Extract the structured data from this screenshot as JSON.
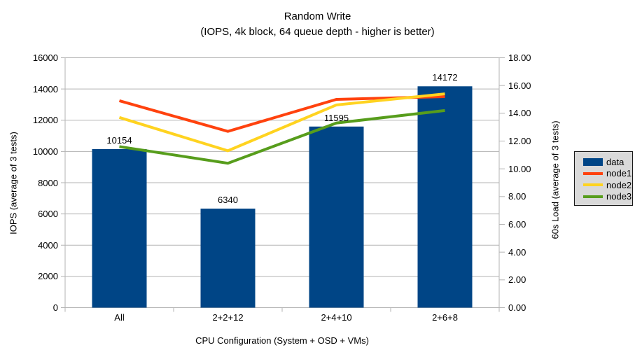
{
  "chart_data": {
    "type": "bar",
    "title": "Random Write",
    "subtitle": "(IOPS, 4k block, 64 queue depth - higher is better)",
    "xlabel": "CPU Configuration (System + OSD + VMs)",
    "categories": [
      "All",
      "2+2+12",
      "2+4+10",
      "2+6+8"
    ],
    "left_axis": {
      "label": "IOPS (average of 3 tests)",
      "min": 0,
      "max": 16000,
      "step": 2000,
      "tick_labels": [
        "0",
        "2000",
        "4000",
        "6000",
        "8000",
        "10000",
        "12000",
        "14000",
        "16000"
      ]
    },
    "right_axis": {
      "label": "60s Load (average of 3 tests)",
      "min": 0,
      "max": 18,
      "step": 2,
      "tick_labels": [
        "0.00",
        "2.00",
        "4.00",
        "6.00",
        "8.00",
        "10.00",
        "12.00",
        "14.00",
        "16.00",
        "18.00"
      ]
    },
    "bar_series": {
      "name": "data",
      "color": "#004586",
      "axis": "left",
      "values": [
        10154,
        6340,
        11595,
        14172
      ],
      "data_labels": [
        "10154",
        "6340",
        "11595",
        "14172"
      ]
    },
    "line_series": [
      {
        "name": "node1",
        "color": "#ff420e",
        "axis": "right",
        "values": [
          14.9,
          12.7,
          15.0,
          15.2
        ]
      },
      {
        "name": "node2",
        "color": "#ffd320",
        "axis": "right",
        "values": [
          13.7,
          11.3,
          14.6,
          15.4
        ]
      },
      {
        "name": "node3",
        "color": "#579d1c",
        "axis": "right",
        "values": [
          11.6,
          10.4,
          13.3,
          14.2
        ]
      }
    ],
    "legend": {
      "position": "right",
      "items": [
        "data",
        "node1",
        "node2",
        "node3"
      ]
    },
    "grid": true,
    "colors": {
      "grid_line": "#b3b3b3",
      "axis_line": "#b3b3b3",
      "legend_bg": "#d9d9d9",
      "text": "#000000",
      "background": "#ffffff"
    }
  }
}
